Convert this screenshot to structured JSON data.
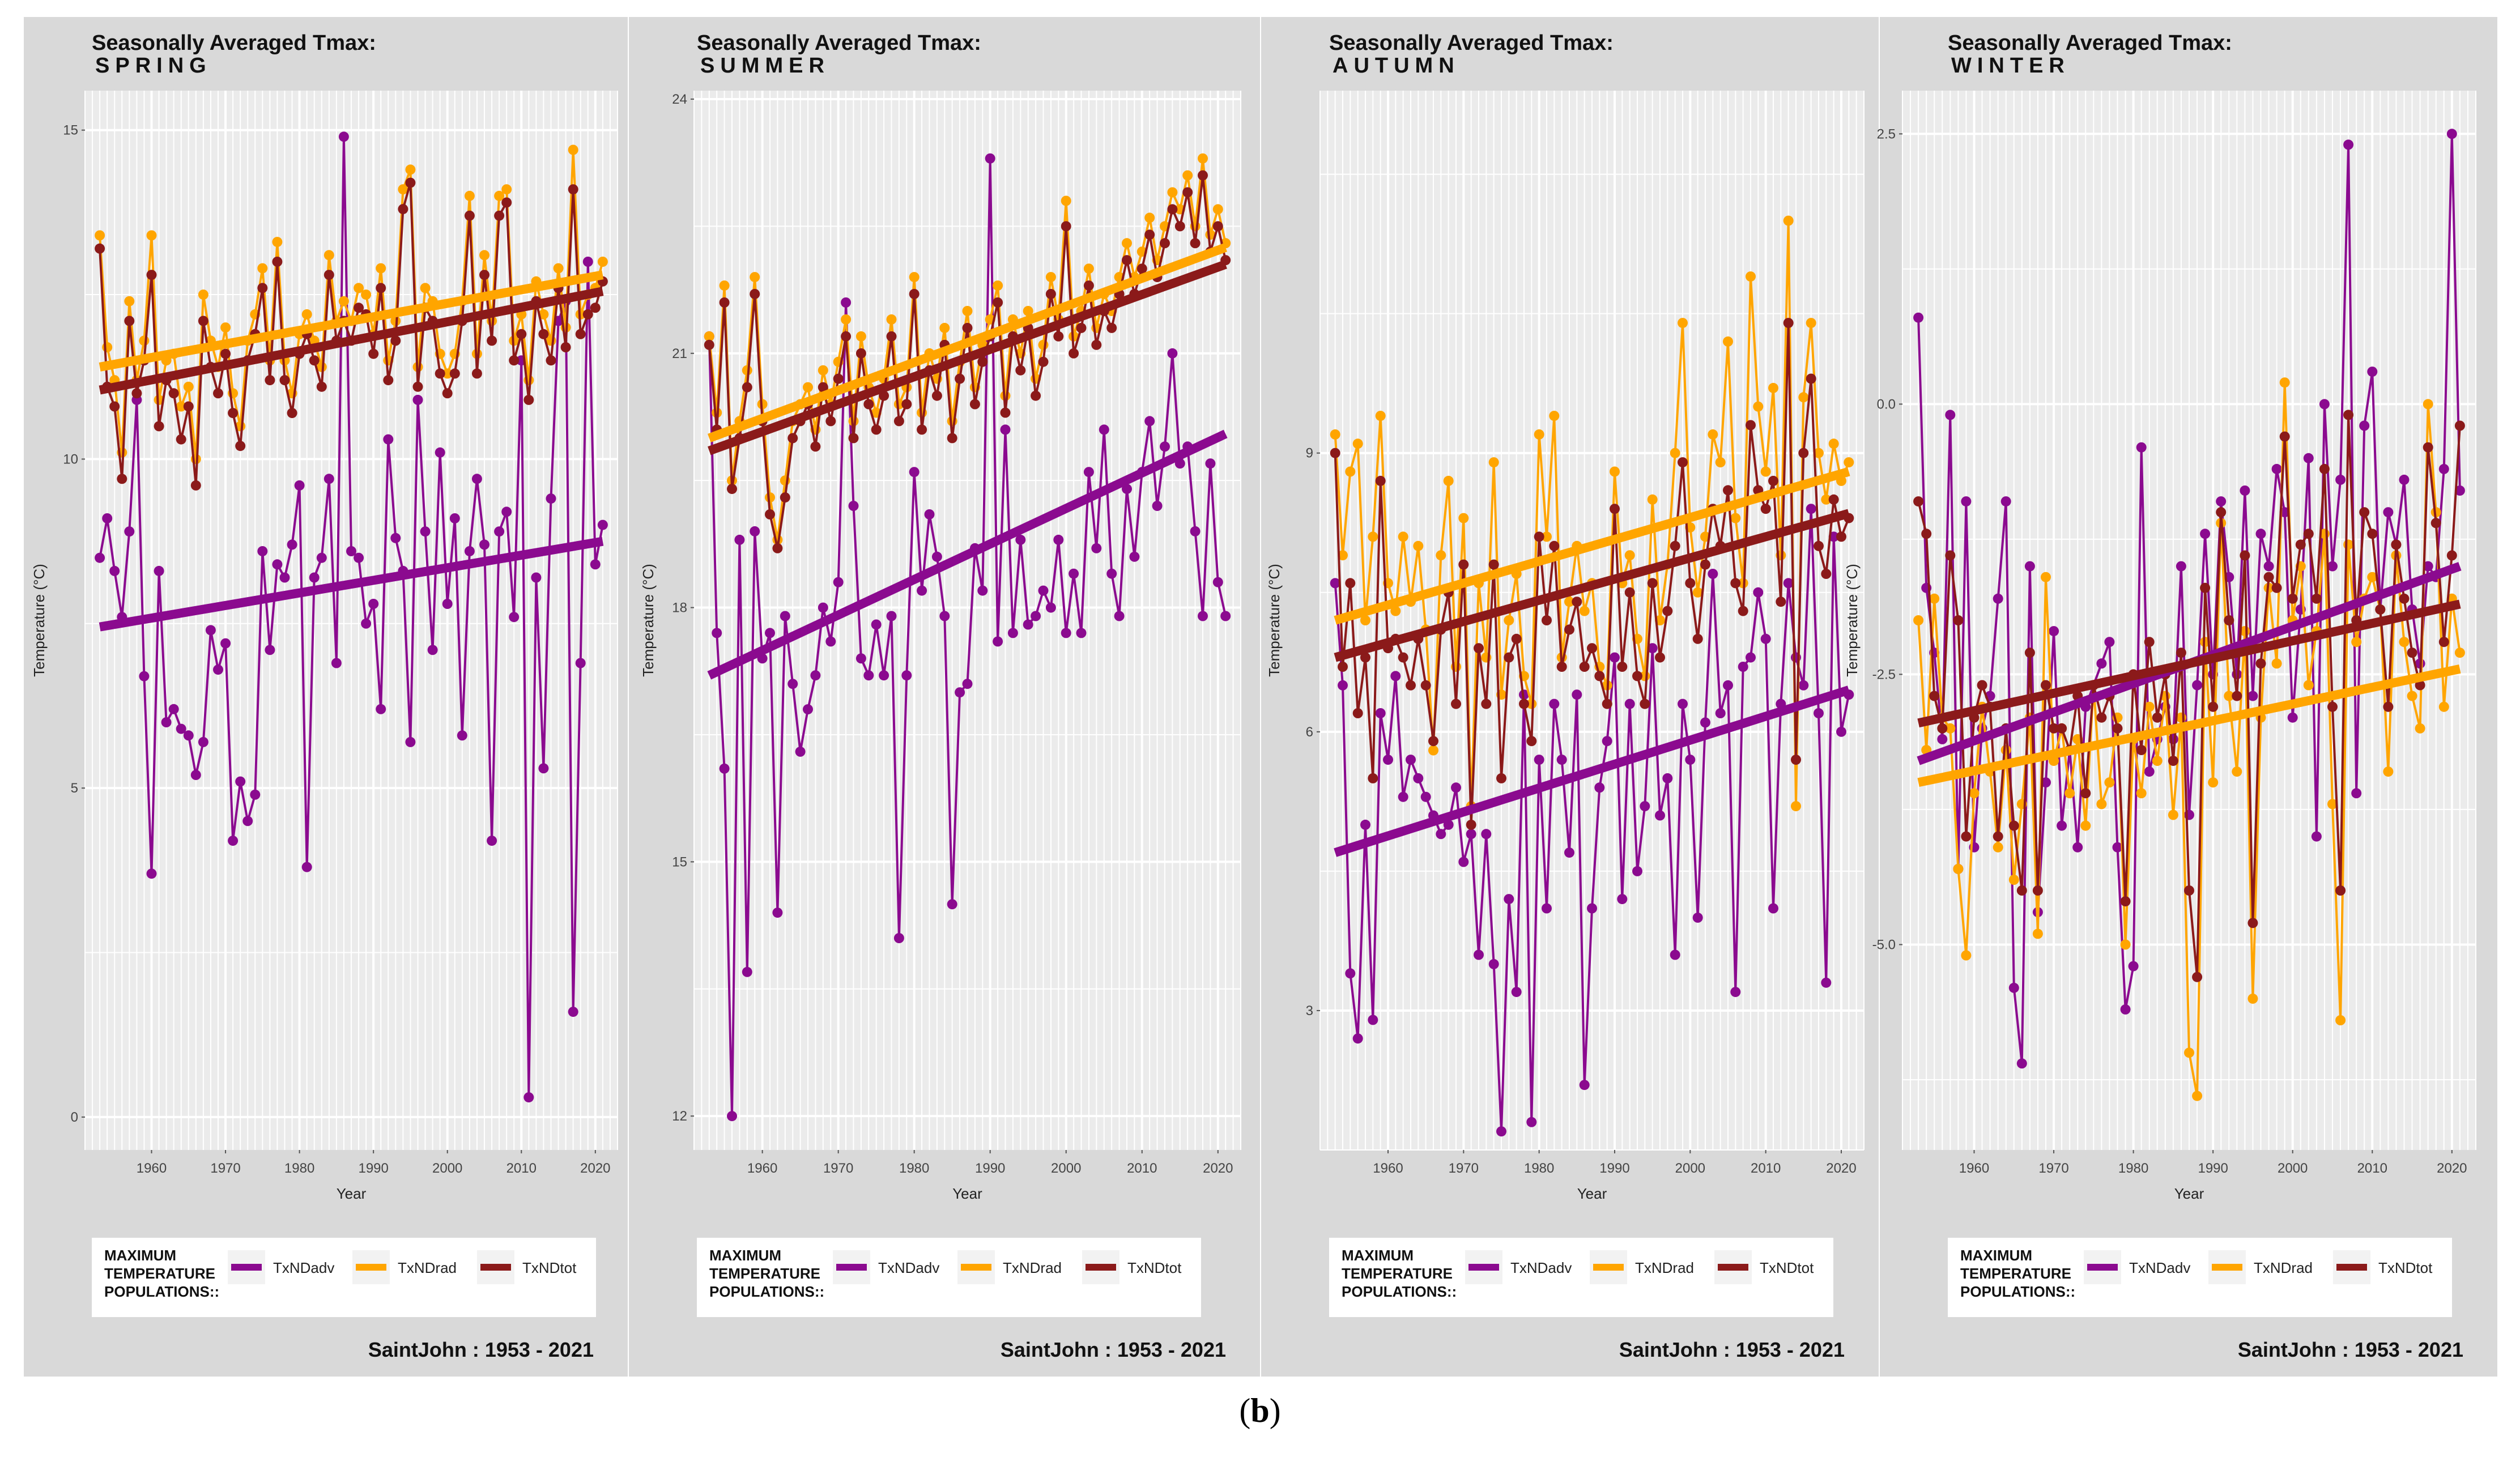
{
  "figure": {
    "caption_open": "(",
    "caption_letter": "b",
    "caption_close": ")",
    "colors": {
      "panel_bg": "#d9d9d9",
      "plot_bg": "#ebebeb",
      "grid": "#ffffff",
      "TxNDadv": "#8b0a8f",
      "TxNDrad": "#ffa500",
      "TxNDtot": "#8b1a1a"
    }
  },
  "chart_data": [
    {
      "type": "line",
      "title": "Seasonally Averaged Tmax:",
      "subtitle": "SPRING",
      "xlabel": "Year",
      "ylabel": "Temperature (°C)",
      "xlim": [
        1951,
        2023
      ],
      "ylim": [
        -0.5,
        15.6
      ],
      "x_ticks": [
        1960,
        1970,
        1980,
        1990,
        2000,
        2010,
        2020
      ],
      "y_ticks": [
        0,
        5,
        10,
        15
      ],
      "y_tick_labels": [
        "0",
        "5",
        "10",
        "15"
      ],
      "legend_title": "MAXIMUM TEMPERATURE POPULATIONS::",
      "station": "SaintJohn :  1953 - 2021",
      "series": [
        {
          "name": "TxNDadv",
          "x_start": 1953,
          "trend": [
            7.45,
            8.75
          ],
          "values": [
            8.5,
            9.1,
            8.3,
            7.6,
            8.9,
            10.9,
            6.7,
            3.7,
            8.3,
            6.0,
            6.2,
            5.9,
            5.8,
            5.2,
            5.7,
            7.4,
            6.8,
            7.2,
            4.2,
            5.1,
            4.5,
            4.9,
            8.6,
            7.1,
            8.4,
            8.2,
            8.7,
            9.6,
            3.8,
            8.2,
            8.5,
            9.7,
            6.9,
            14.9,
            8.6,
            8.5,
            7.5,
            7.8,
            6.2,
            10.3,
            8.8,
            8.3,
            5.7,
            10.9,
            8.9,
            7.1,
            10.1,
            7.8,
            9.1,
            5.8,
            8.6,
            9.7,
            8.7,
            4.2,
            8.9,
            9.2,
            7.6,
            11.5,
            0.3,
            8.2,
            5.3,
            9.4,
            12.1,
            12.4,
            1.6,
            6.9,
            13.0,
            8.4,
            9.0
          ]
        },
        {
          "name": "TxNDrad",
          "x_start": 1953,
          "trend": [
            11.4,
            12.8
          ],
          "values": [
            13.4,
            11.7,
            11.2,
            10.1,
            12.4,
            11.2,
            11.8,
            13.4,
            10.9,
            11.5,
            11.6,
            10.8,
            11.1,
            10.0,
            12.5,
            11.8,
            11.4,
            12.0,
            11.0,
            10.5,
            11.8,
            12.2,
            12.9,
            11.5,
            13.3,
            11.5,
            11.0,
            11.9,
            12.2,
            11.8,
            11.4,
            13.1,
            12.1,
            12.4,
            12.1,
            12.6,
            12.5,
            11.9,
            12.9,
            11.5,
            12.1,
            14.1,
            14.4,
            11.4,
            12.6,
            12.4,
            11.6,
            11.3,
            11.6,
            12.4,
            14.0,
            11.6,
            13.1,
            12.1,
            14.0,
            14.1,
            11.8,
            12.2,
            11.2,
            12.7,
            12.2,
            11.8,
            12.9,
            12.0,
            14.7,
            12.2,
            12.5,
            12.6,
            13.0
          ]
        },
        {
          "name": "TxNDtot",
          "x_start": 1953,
          "trend": [
            11.05,
            12.55
          ],
          "values": [
            13.2,
            11.1,
            10.8,
            9.7,
            12.1,
            11.0,
            11.5,
            12.8,
            10.5,
            11.2,
            11.0,
            10.3,
            10.8,
            9.6,
            12.1,
            11.4,
            11.0,
            11.6,
            10.7,
            10.2,
            11.5,
            11.9,
            12.6,
            11.2,
            13.0,
            11.2,
            10.7,
            11.6,
            11.9,
            11.5,
            11.1,
            12.8,
            11.8,
            12.1,
            11.8,
            12.3,
            12.2,
            11.6,
            12.6,
            11.2,
            11.8,
            13.8,
            14.2,
            11.1,
            12.3,
            12.1,
            11.3,
            11.0,
            11.3,
            12.1,
            13.7,
            11.3,
            12.8,
            11.8,
            13.7,
            13.9,
            11.5,
            11.9,
            10.9,
            12.4,
            11.9,
            11.5,
            12.6,
            11.7,
            14.1,
            11.9,
            12.2,
            12.3,
            12.7
          ]
        }
      ]
    },
    {
      "type": "line",
      "title": "Seasonally Averaged Tmax:",
      "subtitle": "SUMMER",
      "xlabel": "Year",
      "ylabel": "Temperature (°C)",
      "xlim": [
        1951,
        2023
      ],
      "ylim": [
        11.6,
        24.1
      ],
      "x_ticks": [
        1960,
        1970,
        1980,
        1990,
        2000,
        2010,
        2020
      ],
      "y_ticks": [
        12,
        15,
        18,
        21,
        24
      ],
      "y_tick_labels": [
        "12",
        "15",
        "18",
        "21",
        "24"
      ],
      "legend_title": "MAXIMUM TEMPERATURE POPULATIONS::",
      "station": "SaintJohn :  1953 - 2021",
      "series": [
        {
          "name": "TxNDadv",
          "x_start": 1953,
          "trend": [
            17.2,
            20.05
          ],
          "values": [
            21.2,
            17.7,
            16.1,
            12.0,
            18.8,
            13.7,
            18.9,
            17.4,
            17.7,
            14.4,
            17.9,
            17.1,
            16.3,
            16.8,
            17.2,
            18.0,
            17.6,
            18.3,
            21.6,
            19.2,
            17.4,
            17.2,
            17.8,
            17.2,
            17.9,
            14.1,
            17.2,
            19.6,
            18.2,
            19.1,
            18.6,
            17.9,
            14.5,
            17.0,
            17.1,
            18.7,
            18.2,
            23.3,
            17.6,
            20.1,
            17.7,
            18.8,
            17.8,
            17.9,
            18.2,
            18.0,
            18.8,
            17.7,
            18.4,
            17.7,
            19.6,
            18.7,
            20.1,
            18.4,
            17.9,
            19.4,
            18.6,
            19.6,
            20.2,
            19.2,
            19.9,
            21.0,
            19.7,
            19.9,
            18.9,
            17.9,
            19.7,
            18.3,
            17.9
          ]
        },
        {
          "name": "TxNDrad",
          "x_start": 1953,
          "trend": [
            20.0,
            22.25
          ],
          "values": [
            21.2,
            20.3,
            21.8,
            19.5,
            20.2,
            20.8,
            21.9,
            20.4,
            19.3,
            18.8,
            19.5,
            20.2,
            20.4,
            20.6,
            20.1,
            20.8,
            20.4,
            20.9,
            21.4,
            20.2,
            21.2,
            20.6,
            20.3,
            20.7,
            21.4,
            20.4,
            20.6,
            21.9,
            20.3,
            21.0,
            20.7,
            21.3,
            20.2,
            20.9,
            21.5,
            20.6,
            21.1,
            21.4,
            21.8,
            20.5,
            21.4,
            21.0,
            21.5,
            20.7,
            21.1,
            21.9,
            21.4,
            22.8,
            21.2,
            21.5,
            22.0,
            21.3,
            21.7,
            21.5,
            21.9,
            22.3,
            21.9,
            22.2,
            22.6,
            22.1,
            22.5,
            22.9,
            22.7,
            23.1,
            22.5,
            23.3,
            22.4,
            22.7,
            22.3
          ]
        },
        {
          "name": "TxNDtot",
          "x_start": 1953,
          "trend": [
            19.85,
            22.05
          ],
          "values": [
            21.1,
            20.1,
            21.6,
            19.4,
            20.0,
            20.6,
            21.7,
            20.2,
            19.1,
            18.7,
            19.3,
            20.0,
            20.2,
            20.4,
            19.9,
            20.6,
            20.2,
            20.7,
            21.2,
            20.0,
            21.0,
            20.4,
            20.1,
            20.5,
            21.2,
            20.2,
            20.4,
            21.7,
            20.1,
            20.8,
            20.5,
            21.1,
            20.0,
            20.7,
            21.3,
            20.4,
            20.9,
            21.2,
            21.6,
            20.3,
            21.2,
            20.8,
            21.3,
            20.5,
            20.9,
            21.7,
            21.2,
            22.5,
            21.0,
            21.3,
            21.8,
            21.1,
            21.5,
            21.3,
            21.7,
            22.1,
            21.7,
            22.0,
            22.4,
            21.9,
            22.3,
            22.7,
            22.5,
            22.9,
            22.3,
            23.1,
            22.2,
            22.5,
            22.1
          ]
        }
      ]
    },
    {
      "type": "line",
      "title": "Seasonally Averaged Tmax:",
      "subtitle": "AUTUMN",
      "xlabel": "Year",
      "ylabel": "Temperature (°C)",
      "xlim": [
        1951,
        2023
      ],
      "ylim": [
        1.5,
        12.9
      ],
      "x_ticks": [
        1960,
        1970,
        1980,
        1990,
        2000,
        2010,
        2020
      ],
      "y_ticks": [
        3,
        6,
        9
      ],
      "y_tick_labels": [
        "3",
        "6",
        "9"
      ],
      "legend_title": "MAXIMUM TEMPERATURE POPULATIONS::",
      "station": "SaintJohn :  1953 - 2021",
      "series": [
        {
          "name": "TxNDadv",
          "x_start": 1953,
          "trend": [
            4.7,
            6.45
          ],
          "values": [
            7.6,
            6.5,
            3.4,
            2.7,
            5.0,
            2.9,
            6.2,
            5.7,
            6.6,
            5.3,
            5.7,
            5.5,
            5.3,
            5.1,
            4.9,
            5.0,
            5.4,
            4.6,
            4.9,
            3.6,
            4.9,
            3.5,
            1.7,
            4.2,
            3.2,
            6.4,
            1.8,
            5.7,
            4.1,
            6.3,
            5.7,
            4.7,
            6.4,
            2.2,
            4.1,
            5.4,
            5.9,
            6.8,
            4.2,
            6.3,
            4.5,
            5.2,
            6.9,
            5.1,
            5.5,
            3.6,
            6.3,
            5.7,
            4.0,
            6.1,
            7.7,
            6.2,
            6.5,
            3.2,
            6.7,
            6.8,
            7.5,
            7.0,
            4.1,
            6.3,
            7.6,
            6.8,
            6.5,
            8.4,
            6.2,
            3.3,
            8.1,
            6.0,
            6.4
          ]
        },
        {
          "name": "TxNDrad",
          "x_start": 1953,
          "trend": [
            7.2,
            8.8
          ],
          "values": [
            9.2,
            7.9,
            8.8,
            9.1,
            7.2,
            8.1,
            9.4,
            7.6,
            7.3,
            8.1,
            7.4,
            8.0,
            7.1,
            5.8,
            7.9,
            8.7,
            6.7,
            8.3,
            5.2,
            7.6,
            6.8,
            8.9,
            6.4,
            7.2,
            7.7,
            6.6,
            6.3,
            9.2,
            8.1,
            9.4,
            6.8,
            7.4,
            8.0,
            7.3,
            7.6,
            6.7,
            6.5,
            8.8,
            7.6,
            7.9,
            7.0,
            6.6,
            8.5,
            7.2,
            7.8,
            9.0,
            10.4,
            8.2,
            7.5,
            8.1,
            9.2,
            8.9,
            10.2,
            8.3,
            7.6,
            10.9,
            9.5,
            8.8,
            9.7,
            7.9,
            11.5,
            5.2,
            9.6,
            10.4,
            9.0,
            8.5,
            9.1,
            8.7,
            8.9
          ]
        },
        {
          "name": "TxNDtot",
          "x_start": 1953,
          "trend": [
            6.8,
            8.35
          ],
          "values": [
            9.0,
            6.7,
            7.6,
            6.2,
            6.8,
            5.5,
            8.7,
            6.9,
            7.0,
            6.8,
            6.5,
            7.0,
            6.5,
            5.9,
            7.1,
            7.5,
            6.3,
            7.8,
            5.0,
            6.9,
            6.3,
            7.8,
            5.5,
            6.8,
            7.0,
            6.3,
            5.9,
            8.1,
            7.2,
            8.0,
            6.7,
            7.1,
            7.4,
            6.7,
            6.9,
            6.6,
            6.3,
            8.4,
            6.7,
            7.5,
            6.6,
            6.3,
            7.6,
            6.8,
            7.3,
            8.0,
            8.9,
            7.6,
            7.0,
            7.8,
            8.4,
            8.0,
            8.6,
            7.6,
            7.3,
            9.3,
            8.6,
            8.4,
            8.7,
            7.4,
            10.4,
            5.7,
            9.0,
            9.8,
            8.0,
            7.7,
            8.5,
            8.1,
            8.3
          ]
        }
      ]
    },
    {
      "type": "line",
      "title": "Seasonally Averaged Tmax:",
      "subtitle": "WINTER",
      "xlabel": "Year",
      "ylabel": "Temperature (°C)",
      "xlim": [
        1951,
        2023
      ],
      "ylim": [
        -6.9,
        2.9
      ],
      "x_ticks": [
        1960,
        1970,
        1980,
        1990,
        2000,
        2010,
        2020
      ],
      "y_ticks": [
        -5.0,
        -2.5,
        0.0,
        2.5
      ],
      "y_tick_labels": [
        "-5.0",
        "-2.5",
        "0.0",
        "2.5"
      ],
      "legend_title": "MAXIMUM TEMPERATURE POPULATIONS::",
      "station": "SaintJohn :  1953 - 2021",
      "series": [
        {
          "name": "TxNDadv",
          "x_start": 1953,
          "trend": [
            -3.3,
            -1.5
          ],
          "values": [
            0.8,
            -1.7,
            -2.3,
            -3.1,
            -0.1,
            -4.3,
            -0.9,
            -4.1,
            -3.0,
            -2.7,
            -1.8,
            -0.9,
            -5.4,
            -6.1,
            -1.5,
            -4.7,
            -3.5,
            -2.1,
            -3.9,
            -3.2,
            -4.1,
            -2.8,
            -2.6,
            -2.4,
            -2.2,
            -4.1,
            -5.6,
            -5.2,
            -0.4,
            -3.4,
            -3.1,
            -2.8,
            -3.1,
            -1.5,
            -3.8,
            -2.6,
            -1.2,
            -2.5,
            -0.9,
            -1.6,
            -2.5,
            -0.8,
            -2.7,
            -1.2,
            -1.5,
            -0.6,
            -1.0,
            -2.9,
            -1.9,
            -0.5,
            -4.0,
            0.0,
            -1.5,
            -0.7,
            2.4,
            -3.6,
            -0.2,
            0.3,
            -1.9,
            -1.0,
            -1.3,
            -0.7,
            -1.9,
            -2.4,
            -1.5,
            -1.6,
            -0.6,
            2.5,
            -0.8
          ]
        },
        {
          "name": "TxNDrad",
          "x_start": 1953,
          "trend": [
            -3.5,
            -2.45
          ],
          "values": [
            -2.0,
            -3.2,
            -1.8,
            -2.9,
            -3.0,
            -4.3,
            -5.1,
            -3.6,
            -2.8,
            -3.4,
            -4.1,
            -3.2,
            -4.4,
            -3.7,
            -2.9,
            -4.9,
            -1.6,
            -3.3,
            -3.0,
            -3.6,
            -3.1,
            -3.9,
            -2.6,
            -3.7,
            -3.5,
            -2.9,
            -5.0,
            -3.1,
            -3.6,
            -2.8,
            -3.3,
            -2.7,
            -3.8,
            -2.9,
            -6.0,
            -6.4,
            -2.2,
            -3.5,
            -1.1,
            -2.7,
            -3.4,
            -2.1,
            -5.5,
            -2.9,
            -1.7,
            -2.4,
            0.2,
            -2.0,
            -1.5,
            -2.6,
            -2.1,
            -1.2,
            -3.7,
            -5.7,
            -1.3,
            -2.2,
            -1.8,
            -1.6,
            -1.9,
            -3.4,
            -1.4,
            -2.2,
            -2.7,
            -3.0,
            0.0,
            -1.0,
            -2.8,
            -1.8,
            -2.3
          ]
        },
        {
          "name": "TxNDtot",
          "x_start": 1953,
          "trend": [
            -2.95,
            -1.85
          ],
          "values": [
            -0.9,
            -1.2,
            -2.7,
            -3.0,
            -1.4,
            -2.0,
            -4.0,
            -2.9,
            -2.6,
            -2.8,
            -4.0,
            -3.0,
            -3.9,
            -4.5,
            -2.3,
            -4.5,
            -2.6,
            -3.0,
            -3.0,
            -3.2,
            -2.7,
            -3.6,
            -2.6,
            -2.9,
            -2.7,
            -3.0,
            -4.6,
            -2.5,
            -3.2,
            -2.2,
            -2.9,
            -2.5,
            -3.3,
            -2.3,
            -4.5,
            -5.3,
            -1.7,
            -2.8,
            -1.0,
            -2.0,
            -2.7,
            -1.4,
            -4.8,
            -2.4,
            -1.6,
            -1.7,
            -0.3,
            -1.8,
            -1.3,
            -1.2,
            -1.8,
            -0.6,
            -2.8,
            -4.5,
            -0.1,
            -2.0,
            -1.0,
            -1.2,
            -1.9,
            -2.8,
            -1.3,
            -1.8,
            -2.3,
            -2.6,
            -0.4,
            -1.1,
            -2.2,
            -1.4,
            -0.2
          ]
        }
      ]
    }
  ]
}
